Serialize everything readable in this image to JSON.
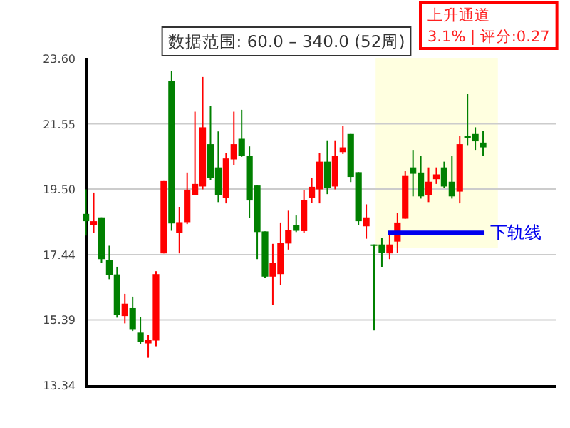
{
  "chart_data": {
    "type": "candlestick",
    "title": "数据范围: 60.0 – 340.0 (52周)",
    "annotations": [
      "上升通道",
      "3.1% | 评分:0.27"
    ],
    "categories": [
      null,
      null,
      null,
      null,
      null,
      null,
      null,
      null,
      null,
      null,
      null,
      null,
      null,
      null,
      null,
      null,
      null,
      null,
      null,
      null,
      null,
      null,
      null,
      null,
      null,
      null,
      null,
      null,
      null,
      null,
      null,
      null,
      null,
      null,
      null,
      null,
      null,
      null,
      null,
      null,
      null,
      null,
      null,
      null,
      null,
      null,
      null,
      null,
      null,
      null,
      null,
      null
    ],
    "ohlc": [
      [
        18.72,
        19.49,
        18.04,
        18.49
      ],
      [
        18.37,
        19.39,
        18.12,
        18.49
      ],
      [
        18.61,
        18.61,
        17.18,
        17.3
      ],
      [
        17.27,
        17.72,
        16.67,
        16.8
      ],
      [
        16.82,
        17.06,
        15.46,
        15.55
      ],
      [
        15.51,
        16.21,
        15.28,
        15.9
      ],
      [
        15.76,
        16.12,
        15.04,
        15.1
      ],
      [
        14.99,
        15.49,
        14.64,
        14.7
      ],
      [
        14.65,
        14.91,
        14.2,
        14.77
      ],
      [
        14.74,
        16.92,
        14.56,
        16.83
      ],
      [
        17.48,
        19.75,
        17.48,
        19.75
      ],
      [
        22.9,
        23.2,
        18.19,
        18.42
      ],
      [
        18.12,
        18.94,
        17.48,
        18.46
      ],
      [
        18.46,
        20.02,
        18.4,
        19.48
      ],
      [
        19.31,
        21.93,
        19.31,
        19.66
      ],
      [
        19.58,
        23.02,
        19.49,
        21.44
      ],
      [
        20.91,
        22.12,
        19.79,
        19.84
      ],
      [
        20.18,
        21.31,
        19.09,
        19.31
      ],
      [
        19.23,
        20.63,
        19.05,
        20.46
      ],
      [
        20.43,
        21.93,
        20.24,
        20.91
      ],
      [
        21.08,
        21.99,
        20.51,
        20.54
      ],
      [
        20.54,
        20.84,
        18.6,
        19.14
      ],
      [
        19.61,
        19.61,
        17.3,
        18.15
      ],
      [
        18.17,
        18.17,
        16.7,
        16.75
      ],
      [
        16.75,
        17.78,
        15.86,
        17.19
      ],
      [
        16.83,
        18.45,
        16.48,
        17.82
      ],
      [
        17.79,
        18.82,
        17.6,
        18.22
      ],
      [
        18.36,
        18.67,
        18.15,
        18.19
      ],
      [
        18.18,
        19.46,
        18.12,
        19.16
      ],
      [
        19.21,
        19.84,
        19.06,
        19.57
      ],
      [
        19.49,
        20.63,
        19.05,
        20.36
      ],
      [
        20.36,
        21.03,
        19.34,
        19.54
      ],
      [
        19.58,
        21.03,
        19.49,
        20.54
      ],
      [
        20.66,
        21.48,
        20.6,
        20.81
      ],
      [
        21.23,
        21.23,
        19.72,
        19.88
      ],
      [
        20.03,
        20.03,
        18.37,
        18.49
      ],
      [
        18.33,
        19.02,
        17.94,
        18.61
      ],
      [
        17.76,
        17.76,
        15.06,
        17.72
      ],
      [
        17.76,
        17.97,
        17.04,
        17.5
      ],
      [
        17.48,
        18.08,
        17.3,
        17.76
      ],
      [
        17.85,
        18.76,
        17.49,
        18.45
      ],
      [
        18.57,
        20.06,
        18.57,
        19.91
      ],
      [
        20.18,
        20.73,
        19.27,
        19.98
      ],
      [
        20.02,
        20.55,
        19.2,
        19.27
      ],
      [
        19.31,
        20.18,
        19.09,
        19.73
      ],
      [
        19.81,
        20.18,
        19.66,
        19.96
      ],
      [
        20.18,
        20.36,
        19.54,
        19.58
      ],
      [
        19.73,
        20.55,
        19.2,
        19.27
      ],
      [
        19.42,
        21.18,
        19.05,
        20.91
      ],
      [
        21.17,
        22.48,
        20.88,
        21.1
      ],
      [
        21.23,
        21.44,
        20.73,
        21.0
      ],
      [
        20.96,
        21.33,
        20.55,
        20.81
      ]
    ],
    "colors": [
      "#008000",
      "#ff0000",
      "#008000",
      "#008000",
      "#008000",
      "#ff0000",
      "#008000",
      "#008000",
      "#ff0000",
      "#ff0000",
      "#ff0000",
      "#008000",
      "#ff0000",
      "#ff0000",
      "#ff0000",
      "#ff0000",
      "#008000",
      "#008000",
      "#ff0000",
      "#ff0000",
      "#008000",
      "#008000",
      "#008000",
      "#008000",
      "#ff0000",
      "#ff0000",
      "#ff0000",
      "#008000",
      "#ff0000",
      "#ff0000",
      "#ff0000",
      "#008000",
      "#ff0000",
      "#ff0000",
      "#008000",
      "#008000",
      "#ff0000",
      "#008000",
      "#008000",
      "#ff0000",
      "#ff0000",
      "#ff0000",
      "#008000",
      "#008000",
      "#ff0000",
      "#ff0000",
      "#008000",
      "#008000",
      "#ff0000",
      "#008000",
      "#008000",
      "#008000"
    ],
    "ylim": [
      13.34,
      23.6
    ],
    "yticks": [
      13.34,
      15.39,
      17.44,
      {
        "value": 19.5,
        "label": "19.50"
      },
      21.55,
      {
        "value": 23.6,
        "label": "23.60"
      }
    ],
    "grid": "y",
    "tick_labels": "y",
    "ref_lines": [
      {
        "axis": "y",
        "value": 18.13,
        "label": "下轨线",
        "color": "#0000ee"
      }
    ]
  }
}
